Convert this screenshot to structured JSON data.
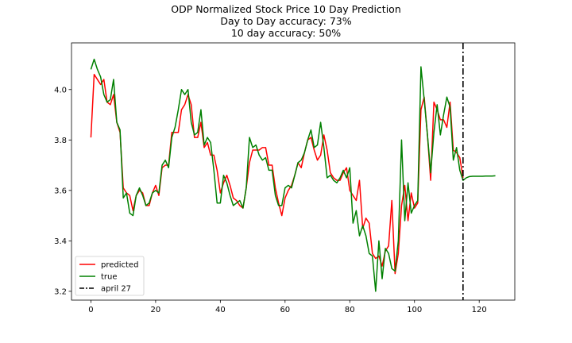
{
  "chart_data": {
    "type": "line",
    "title_lines": [
      "ODP Normalized Stock Price 10 Day Prediction",
      "Day to Day accuracy: 73%",
      "10 day accuracy: 50%"
    ],
    "xlabel": "",
    "ylabel": "",
    "xlim": [
      -6,
      131
    ],
    "ylim": [
      3.165,
      4.185
    ],
    "x_ticks": [
      0,
      20,
      40,
      60,
      80,
      100,
      120
    ],
    "y_ticks": [
      3.2,
      3.4,
      3.6,
      3.8,
      4.0
    ],
    "y_tick_labels": [
      "3.2",
      "3.4",
      "3.6",
      "3.8",
      "4.0"
    ],
    "grid": false,
    "legend_position": "lower-left",
    "vline": {
      "x": 115,
      "name": "april 27",
      "style": "dash-dot",
      "color": "#000000"
    },
    "series": [
      {
        "name": "predicted",
        "color": "#ff0000",
        "x_start": 0,
        "values": [
          3.81,
          4.06,
          4.04,
          4.02,
          4.04,
          3.95,
          3.94,
          3.98,
          3.87,
          3.83,
          3.61,
          3.59,
          3.58,
          3.52,
          3.58,
          3.6,
          3.59,
          3.54,
          3.54,
          3.59,
          3.62,
          3.58,
          3.69,
          3.7,
          3.7,
          3.83,
          3.83,
          3.83,
          3.92,
          3.94,
          3.98,
          3.94,
          3.81,
          3.81,
          3.87,
          3.77,
          3.79,
          3.74,
          3.74,
          3.68,
          3.59,
          3.63,
          3.66,
          3.62,
          3.57,
          3.56,
          3.54,
          3.53,
          3.61,
          3.71,
          3.76,
          3.76,
          3.76,
          3.77,
          3.77,
          3.7,
          3.7,
          3.61,
          3.55,
          3.5,
          3.57,
          3.6,
          3.62,
          3.66,
          3.71,
          3.69,
          3.75,
          3.8,
          3.81,
          3.76,
          3.72,
          3.74,
          3.82,
          3.76,
          3.67,
          3.65,
          3.64,
          3.64,
          3.67,
          3.69,
          3.6,
          3.58,
          3.56,
          3.64,
          3.45,
          3.49,
          3.47,
          3.35,
          3.33,
          3.34,
          3.3,
          3.36,
          3.38,
          3.56,
          3.27,
          3.35,
          3.54,
          3.62,
          3.48,
          3.59,
          3.53,
          3.55,
          3.92,
          3.97,
          3.82,
          3.64,
          3.95,
          3.92,
          3.88,
          3.88,
          3.85,
          3.95,
          3.76,
          3.75,
          3.73,
          3.65
        ]
      },
      {
        "name": "true",
        "color": "#008000",
        "x_start": 0,
        "values": [
          4.08,
          4.12,
          4.08,
          4.05,
          3.98,
          3.95,
          3.96,
          4.04,
          3.87,
          3.84,
          3.57,
          3.59,
          3.51,
          3.5,
          3.58,
          3.61,
          3.58,
          3.54,
          3.55,
          3.59,
          3.6,
          3.59,
          3.7,
          3.72,
          3.69,
          3.81,
          3.85,
          3.92,
          4.0,
          3.98,
          4.0,
          3.87,
          3.82,
          3.83,
          3.92,
          3.78,
          3.81,
          3.79,
          3.68,
          3.55,
          3.55,
          3.66,
          3.63,
          3.58,
          3.54,
          3.55,
          3.56,
          3.53,
          3.61,
          3.81,
          3.77,
          3.78,
          3.74,
          3.72,
          3.73,
          3.68,
          3.68,
          3.58,
          3.54,
          3.54,
          3.61,
          3.62,
          3.61,
          3.66,
          3.71,
          3.72,
          3.75,
          3.8,
          3.84,
          3.77,
          3.78,
          3.87,
          3.77,
          3.65,
          3.66,
          3.64,
          3.63,
          3.65,
          3.68,
          3.65,
          3.69,
          3.47,
          3.52,
          3.42,
          3.46,
          3.42,
          3.35,
          3.34,
          3.2,
          3.4,
          3.25,
          3.37,
          3.35,
          3.29,
          3.28,
          3.4,
          3.8,
          3.48,
          3.63,
          3.51,
          3.54,
          3.56,
          4.09,
          3.96,
          3.82,
          3.67,
          3.83,
          3.94,
          3.82,
          3.9,
          3.97,
          3.93,
          3.72,
          3.77,
          3.68,
          3.64,
          3.65,
          3.655,
          3.656,
          3.656,
          3.656,
          3.656,
          3.657,
          3.657,
          3.657,
          3.658
        ]
      }
    ]
  }
}
